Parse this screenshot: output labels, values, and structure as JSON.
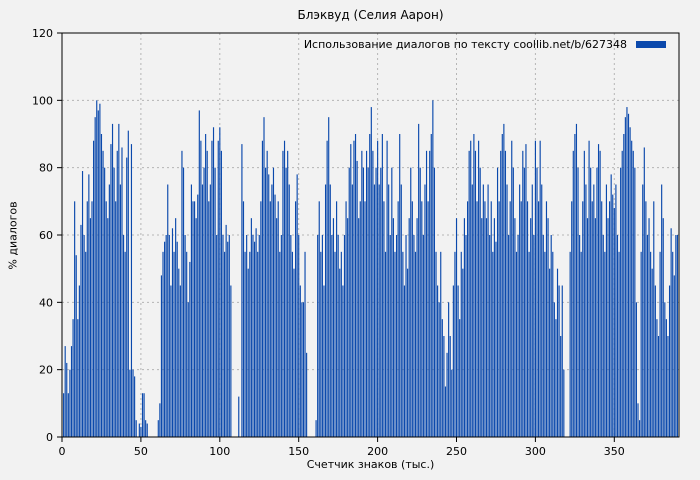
{
  "title": "Блэквуд (Селия Аарон)",
  "legend": {
    "label": "Использование диалогов по тексту coollib.net/b/627348"
  },
  "colors": {
    "background": "#f2f2f2",
    "bar": "#0b49ac",
    "grid": "#b5b5b5",
    "border": "#000000"
  },
  "chart_data": {
    "type": "bar",
    "style": "impulses",
    "title": "Блэквуд (Селия Аарон)",
    "legend_label": "Использование диалогов по тексту coollib.net/b/627348",
    "legend_position": "top-right",
    "xlabel": "Счетчик знаков (тыс.)",
    "ylabel": "% диалогов",
    "xlim": [
      0,
      391
    ],
    "ylim": [
      0,
      120
    ],
    "xticks": [
      0,
      50,
      100,
      150,
      200,
      250,
      300,
      350
    ],
    "yticks": [
      0,
      20,
      40,
      60,
      80,
      100,
      120
    ],
    "grid": true,
    "bar_color": "#0b49ac",
    "x_start": 0,
    "x_step": 1,
    "values": [
      0,
      13,
      27,
      22,
      13,
      20,
      27,
      35,
      70,
      54,
      35,
      45,
      63,
      79,
      60,
      55,
      70,
      78,
      65,
      70,
      88,
      95,
      100,
      97,
      99,
      90,
      85,
      80,
      70,
      65,
      75,
      87,
      93,
      80,
      70,
      85,
      93,
      75,
      86,
      60,
      55,
      83,
      91,
      20,
      87,
      20,
      18,
      5,
      0,
      4,
      3,
      13,
      13,
      5,
      4,
      0,
      0,
      0,
      0,
      0,
      0,
      5,
      10,
      48,
      55,
      58,
      60,
      75,
      60,
      45,
      62,
      55,
      65,
      58,
      50,
      45,
      85,
      80,
      60,
      55,
      40,
      52,
      75,
      70,
      70,
      65,
      72,
      97,
      88,
      75,
      80,
      90,
      85,
      70,
      75,
      88,
      92,
      80,
      60,
      88,
      92,
      85,
      60,
      55,
      63,
      58,
      60,
      45,
      0,
      0,
      0,
      0,
      12,
      0,
      87,
      70,
      55,
      60,
      50,
      55,
      65,
      60,
      58,
      62,
      55,
      60,
      70,
      88,
      95,
      80,
      85,
      78,
      70,
      75,
      80,
      72,
      65,
      70,
      55,
      60,
      85,
      88,
      80,
      85,
      75,
      60,
      55,
      50,
      70,
      78,
      60,
      45,
      40,
      40,
      55,
      25,
      0,
      0,
      0,
      0,
      0,
      5,
      60,
      70,
      55,
      60,
      45,
      75,
      88,
      95,
      75,
      60,
      65,
      55,
      70,
      60,
      50,
      55,
      45,
      60,
      70,
      65,
      80,
      87,
      75,
      88,
      90,
      82,
      65,
      70,
      85,
      80,
      70,
      85,
      80,
      90,
      98,
      85,
      75,
      80,
      88,
      75,
      80,
      90,
      70,
      55,
      88,
      75,
      60,
      80,
      65,
      55,
      60,
      70,
      90,
      75,
      55,
      45,
      60,
      50,
      65,
      80,
      70,
      60,
      55,
      65,
      93,
      80,
      70,
      60,
      75,
      85,
      70,
      85,
      90,
      100,
      80,
      55,
      45,
      40,
      55,
      35,
      30,
      15,
      25,
      40,
      30,
      20,
      45,
      55,
      65,
      45,
      35,
      55,
      50,
      65,
      60,
      70,
      85,
      88,
      75,
      90,
      85,
      70,
      88,
      80,
      65,
      75,
      70,
      65,
      75,
      60,
      70,
      55,
      65,
      58,
      80,
      70,
      85,
      90,
      93,
      85,
      75,
      60,
      70,
      88,
      80,
      65,
      55,
      60,
      75,
      70,
      85,
      80,
      87,
      70,
      55,
      65,
      75,
      60,
      88,
      80,
      70,
      88,
      75,
      60,
      55,
      70,
      65,
      50,
      60,
      55,
      40,
      35,
      50,
      45,
      30,
      45,
      20,
      0,
      0,
      0,
      55,
      70,
      85,
      90,
      93,
      80,
      60,
      55,
      70,
      85,
      75,
      65,
      88,
      80,
      70,
      75,
      65,
      80,
      87,
      85,
      70,
      60,
      55,
      75,
      65,
      70,
      78,
      72,
      68,
      75,
      60,
      55,
      80,
      85,
      90,
      95,
      98,
      96,
      92,
      88,
      85,
      80,
      40,
      10,
      5,
      55,
      75,
      86,
      70,
      60,
      65,
      55,
      50,
      70,
      45,
      35,
      30,
      55,
      75,
      65,
      40,
      35,
      30,
      45,
      62,
      55,
      48,
      60,
      60
    ]
  }
}
